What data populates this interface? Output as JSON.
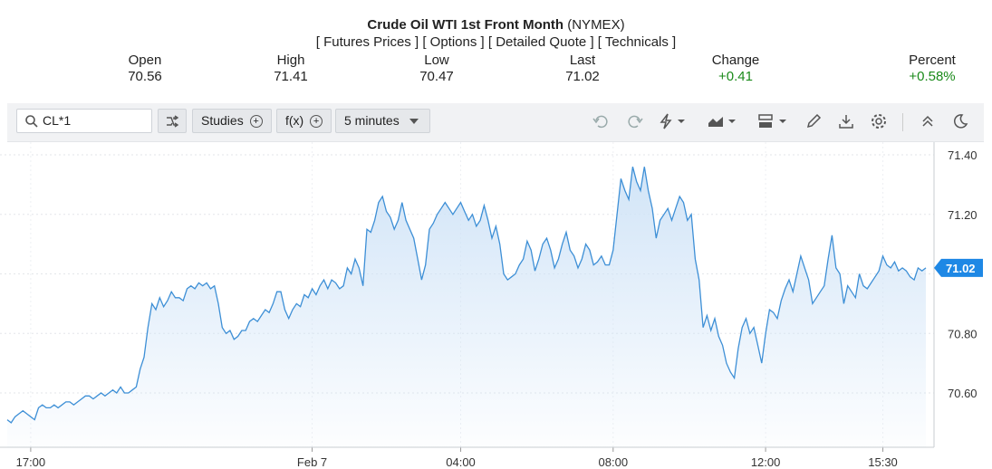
{
  "header": {
    "title_main": "Crude Oil WTI 1st Front Month",
    "title_exchange": "(NYMEX)",
    "links": [
      "[ Futures Prices ]",
      "[ Options ]",
      "[ Detailed Quote ]",
      "[ Technicals ]"
    ]
  },
  "stats": {
    "open": {
      "label": "Open",
      "value": "70.56"
    },
    "high": {
      "label": "High",
      "value": "71.41"
    },
    "low": {
      "label": "Low",
      "value": "70.47"
    },
    "last": {
      "label": "Last",
      "value": "71.02"
    },
    "change": {
      "label": "Change",
      "value": "+0.41"
    },
    "percent": {
      "label": "Percent",
      "value": "+0.58%"
    }
  },
  "toolbar": {
    "symbol": "CL*1",
    "studies_label": "Studies",
    "fx_label": "f(x)",
    "interval_label": "5 minutes",
    "icons": [
      "compare-icon",
      "undo-icon",
      "redo-icon",
      "lightning-icon",
      "chart-type-icon",
      "layout-icon",
      "draw-icon",
      "download-icon",
      "settings-icon",
      "collapse-icon",
      "dark-mode-icon"
    ]
  },
  "colors": {
    "line": "#3d8fd6",
    "fill_top": "#cfe3f7",
    "positive": "#1a8a1a",
    "last_badge": "#1e88e5"
  },
  "chart_data": {
    "type": "area",
    "ylim": [
      70.47,
      71.45
    ],
    "y_ticks": [
      71.4,
      71.2,
      70.8,
      70.6
    ],
    "y_tick_labels": [
      "71.40",
      "71.20",
      "70.80",
      "70.60"
    ],
    "x_tick_labels": [
      "17:00",
      "Feb 7",
      "04:00",
      "08:00",
      "12:00",
      "15:30"
    ],
    "x_tick_index": [
      6,
      78,
      116,
      155,
      194,
      224
    ],
    "last_label": "71.02",
    "last_value": 71.02,
    "values": [
      70.51,
      70.5,
      70.52,
      70.53,
      70.54,
      70.53,
      70.52,
      70.51,
      70.55,
      70.56,
      70.55,
      70.55,
      70.56,
      70.55,
      70.56,
      70.57,
      70.57,
      70.56,
      70.57,
      70.58,
      70.59,
      70.59,
      70.58,
      70.59,
      70.6,
      70.59,
      70.6,
      70.61,
      70.6,
      70.62,
      70.6,
      70.6,
      70.61,
      70.62,
      70.68,
      70.72,
      70.82,
      70.9,
      70.88,
      70.92,
      70.89,
      70.91,
      70.94,
      70.92,
      70.92,
      70.91,
      70.95,
      70.96,
      70.95,
      70.97,
      70.96,
      70.97,
      70.95,
      70.96,
      70.9,
      70.82,
      70.8,
      70.81,
      70.78,
      70.79,
      70.81,
      70.81,
      70.84,
      70.85,
      70.84,
      70.86,
      70.88,
      70.87,
      70.9,
      70.94,
      70.94,
      70.88,
      70.85,
      70.88,
      70.9,
      70.89,
      70.93,
      70.92,
      70.95,
      70.93,
      70.96,
      70.98,
      70.95,
      70.98,
      70.97,
      70.95,
      70.96,
      71.02,
      71.0,
      71.05,
      71.02,
      70.96,
      71.15,
      71.14,
      71.18,
      71.24,
      71.26,
      71.21,
      71.19,
      71.15,
      71.18,
      71.24,
      71.18,
      71.15,
      71.12,
      71.05,
      70.98,
      71.03,
      71.15,
      71.17,
      71.2,
      71.22,
      71.24,
      71.22,
      71.2,
      71.22,
      71.24,
      71.21,
      71.18,
      71.2,
      71.16,
      71.18,
      71.23,
      71.18,
      71.12,
      71.16,
      71.1,
      71.0,
      70.98,
      70.99,
      71.0,
      71.03,
      71.05,
      71.11,
      71.08,
      71.01,
      71.05,
      71.1,
      71.12,
      71.08,
      71.02,
      71.05,
      71.1,
      71.14,
      71.08,
      71.06,
      71.02,
      71.05,
      71.1,
      71.08,
      71.03,
      71.04,
      71.06,
      71.03,
      71.03,
      71.08,
      71.2,
      71.32,
      71.28,
      71.25,
      71.36,
      71.31,
      71.28,
      71.36,
      71.28,
      71.22,
      71.12,
      71.18,
      71.2,
      71.22,
      71.18,
      71.22,
      71.26,
      71.24,
      71.18,
      71.2,
      71.05,
      70.98,
      70.82,
      70.86,
      70.81,
      70.85,
      70.79,
      70.76,
      70.7,
      70.67,
      70.65,
      70.75,
      70.82,
      70.85,
      70.8,
      70.82,
      70.76,
      70.7,
      70.8,
      70.88,
      70.87,
      70.85,
      70.91,
      70.95,
      70.98,
      70.94,
      71.0,
      71.06,
      71.02,
      70.98,
      70.9,
      70.92,
      70.94,
      70.96,
      71.05,
      71.13,
      71.02,
      71.0,
      70.9,
      70.96,
      70.94,
      70.92,
      71.0,
      70.96,
      70.95,
      70.97,
      70.99,
      71.01,
      71.06,
      71.03,
      71.02,
      71.04,
      71.01,
      71.02,
      71.01,
      70.99,
      70.98,
      71.02,
      71.01,
      71.02
    ]
  }
}
